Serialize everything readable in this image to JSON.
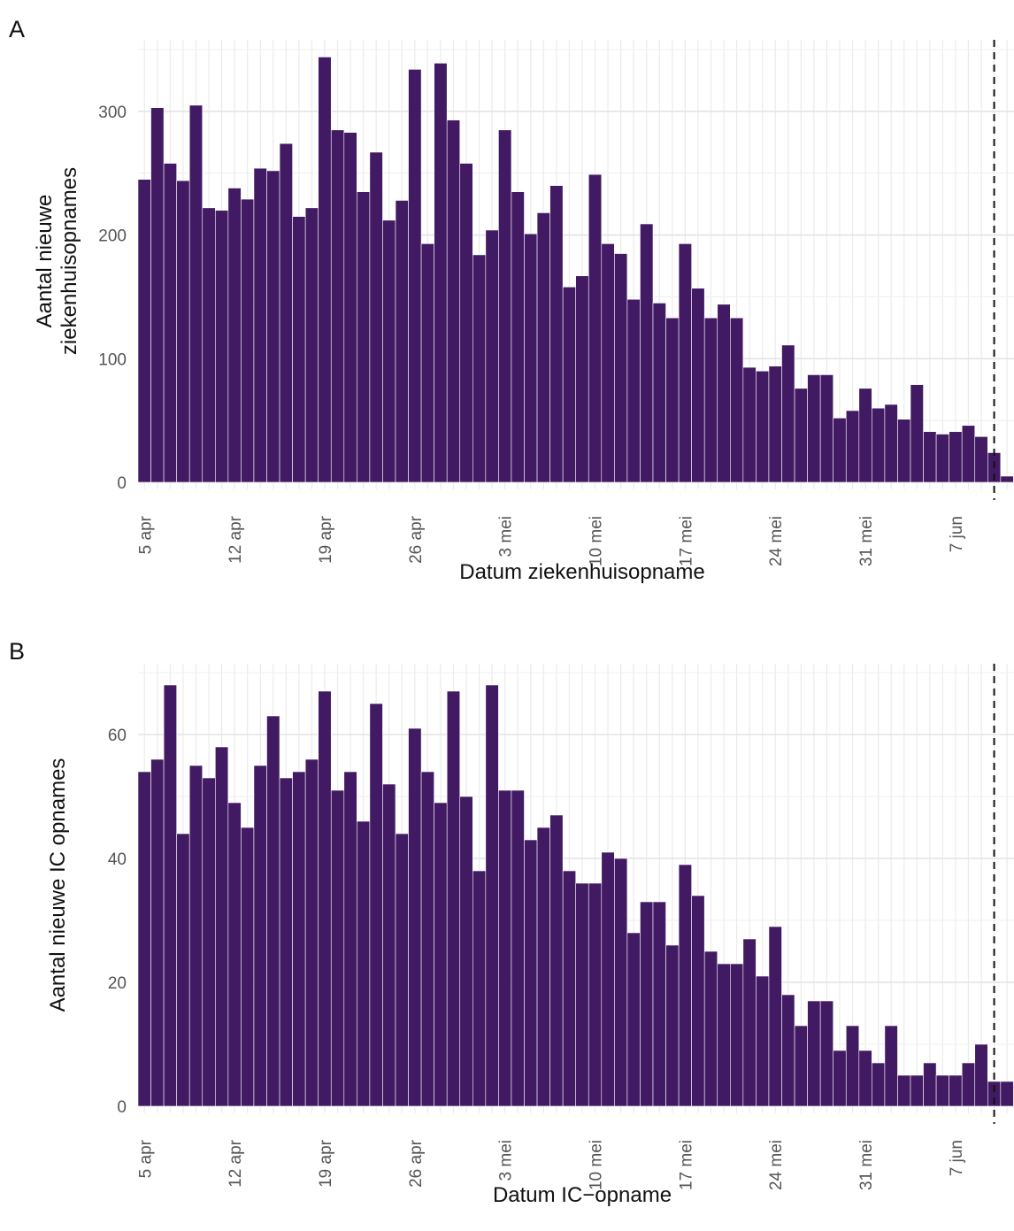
{
  "chart_data": [
    {
      "panel": "A",
      "type": "bar",
      "xlabel": "Datum ziekenhuisopname",
      "ylabel_lines": [
        "Aantal nieuwe",
        "ziekenhuisopnames"
      ],
      "ylim": [
        0,
        350
      ],
      "yticks": [
        0,
        100,
        200,
        300
      ],
      "xtick_labels": [
        "5 apr",
        "12 apr",
        "19 apr",
        "26 apr",
        "3 mei",
        "10 mei",
        "17 mei",
        "24 mei",
        "31 mei",
        "7 jun"
      ],
      "xtick_day_index": [
        0,
        7,
        14,
        21,
        28,
        35,
        42,
        49,
        56,
        63
      ],
      "dashed_line_day_index": 66.5,
      "grid": true,
      "bar_color": "#421a63",
      "values": [
        245,
        303,
        258,
        244,
        305,
        222,
        220,
        238,
        229,
        254,
        252,
        274,
        215,
        222,
        344,
        285,
        283,
        235,
        267,
        212,
        228,
        334,
        193,
        339,
        293,
        258,
        184,
        204,
        285,
        235,
        201,
        218,
        240,
        158,
        167,
        249,
        193,
        185,
        148,
        209,
        145,
        133,
        193,
        157,
        133,
        144,
        133,
        93,
        90,
        94,
        111,
        76,
        87,
        87,
        52,
        58,
        76,
        60,
        63,
        51,
        79,
        41,
        39,
        41,
        46,
        37,
        24,
        5
      ]
    },
    {
      "panel": "B",
      "type": "bar",
      "xlabel": "Datum IC−opname",
      "ylabel_lines": [
        "Aantal nieuwe IC opnames"
      ],
      "ylim": [
        0,
        70
      ],
      "yticks": [
        0,
        20,
        40,
        60
      ],
      "xtick_labels": [
        "5 apr",
        "12 apr",
        "19 apr",
        "26 apr",
        "3 mei",
        "10 mei",
        "17 mei",
        "24 mei",
        "31 mei",
        "7 jun"
      ],
      "xtick_day_index": [
        0,
        7,
        14,
        21,
        28,
        35,
        42,
        49,
        56,
        63
      ],
      "dashed_line_day_index": 66.5,
      "grid": true,
      "bar_color": "#421a63",
      "values": [
        54,
        56,
        68,
        44,
        55,
        53,
        58,
        49,
        45,
        55,
        63,
        53,
        54,
        56,
        67,
        51,
        54,
        46,
        65,
        52,
        44,
        61,
        54,
        49,
        67,
        50,
        38,
        68,
        51,
        51,
        43,
        45,
        47,
        38,
        36,
        36,
        41,
        40,
        28,
        33,
        33,
        26,
        39,
        34,
        25,
        23,
        23,
        27,
        21,
        29,
        18,
        13,
        17,
        17,
        9,
        13,
        9,
        7,
        13,
        5,
        5,
        7,
        5,
        5,
        7,
        10,
        4,
        4
      ]
    }
  ]
}
